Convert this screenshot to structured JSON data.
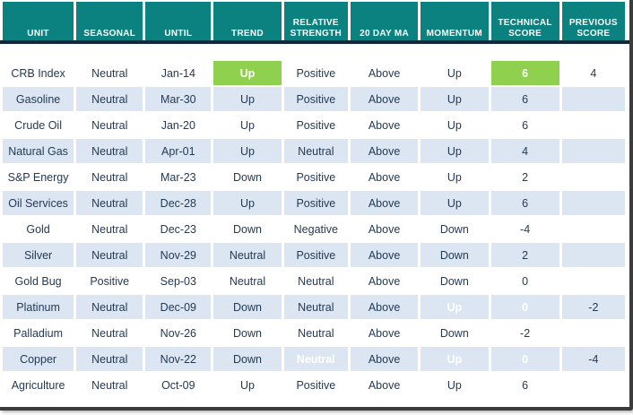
{
  "colors": {
    "header_bg": "#0B8180",
    "header_text": "#FFFFFF",
    "row_bg": "#FFFFFF",
    "row_alt_bg": "#DCE6F2",
    "cell_text": "#233A54",
    "highlight_bg": "#8FD04F",
    "highlight_text": "#FFFFFF",
    "header_underline": "#10273E",
    "frame": "#3C3C3C"
  },
  "chart_data": {
    "type": "table",
    "columns": [
      {
        "key": "unit",
        "label": "UNIT"
      },
      {
        "key": "seasonal",
        "label": "SEASONAL"
      },
      {
        "key": "until",
        "label": "UNTIL"
      },
      {
        "key": "trend",
        "label": "TREND"
      },
      {
        "key": "relative_strength",
        "label": "RELATIVE\nSTRENGTH"
      },
      {
        "key": "ma_20day",
        "label": "20 DAY MA"
      },
      {
        "key": "momentum",
        "label": "MOMENTUM"
      },
      {
        "key": "technical_score",
        "label": "TECHNICAL\nSCORE"
      },
      {
        "key": "previous_score",
        "label": "PREVIOUS\nSCORE"
      }
    ],
    "rows": [
      {
        "values": {
          "unit": "CRB Index",
          "seasonal": "Neutral",
          "until": "Jan-14",
          "trend": "Up",
          "relative_strength": "Positive",
          "ma_20day": "Above",
          "momentum": "Up",
          "technical_score": "6",
          "previous_score": "4"
        },
        "highlights": [
          "trend",
          "technical_score"
        ]
      },
      {
        "values": {
          "unit": "Gasoline",
          "seasonal": "Neutral",
          "until": "Mar-30",
          "trend": "Up",
          "relative_strength": "Positive",
          "ma_20day": "Above",
          "momentum": "Up",
          "technical_score": "6",
          "previous_score": ""
        },
        "highlights": []
      },
      {
        "values": {
          "unit": "Crude Oil",
          "seasonal": "Neutral",
          "until": "Jan-20",
          "trend": "Up",
          "relative_strength": "Positive",
          "ma_20day": "Above",
          "momentum": "Up",
          "technical_score": "6",
          "previous_score": ""
        },
        "highlights": []
      },
      {
        "values": {
          "unit": "Natural Gas",
          "seasonal": "Neutral",
          "until": "Apr-01",
          "trend": "Up",
          "relative_strength": "Neutral",
          "ma_20day": "Above",
          "momentum": "Up",
          "technical_score": "4",
          "previous_score": ""
        },
        "highlights": []
      },
      {
        "values": {
          "unit": "S&P Energy",
          "seasonal": "Neutral",
          "until": "Mar-23",
          "trend": "Down",
          "relative_strength": "Positive",
          "ma_20day": "Above",
          "momentum": "Up",
          "technical_score": "2",
          "previous_score": ""
        },
        "highlights": []
      },
      {
        "values": {
          "unit": "Oil Services",
          "seasonal": "Neutral",
          "until": "Dec-28",
          "trend": "Up",
          "relative_strength": "Positive",
          "ma_20day": "Above",
          "momentum": "Up",
          "technical_score": "6",
          "previous_score": ""
        },
        "highlights": []
      },
      {
        "values": {
          "unit": "Gold",
          "seasonal": "Neutral",
          "until": "Dec-23",
          "trend": "Down",
          "relative_strength": "Negative",
          "ma_20day": "Above",
          "momentum": "Down",
          "technical_score": "-4",
          "previous_score": ""
        },
        "highlights": []
      },
      {
        "values": {
          "unit": "Silver",
          "seasonal": "Neutral",
          "until": "Nov-29",
          "trend": "Neutral",
          "relative_strength": "Positive",
          "ma_20day": "Above",
          "momentum": "Down",
          "technical_score": "2",
          "previous_score": ""
        },
        "highlights": []
      },
      {
        "values": {
          "unit": "Gold Bug",
          "seasonal": "Positive",
          "until": "Sep-03",
          "trend": "Neutral",
          "relative_strength": "Neutral",
          "ma_20day": "Above",
          "momentum": "Down",
          "technical_score": "0",
          "previous_score": ""
        },
        "highlights": []
      },
      {
        "values": {
          "unit": "Platinum",
          "seasonal": "Neutral",
          "until": "Dec-09",
          "trend": "Down",
          "relative_strength": "Neutral",
          "ma_20day": "Above",
          "momentum": "Up",
          "technical_score": "0",
          "previous_score": "-2"
        },
        "highlights": [
          "momentum",
          "technical_score"
        ]
      },
      {
        "values": {
          "unit": "Palladium",
          "seasonal": "Neutral",
          "until": "Nov-26",
          "trend": "Down",
          "relative_strength": "Neutral",
          "ma_20day": "Above",
          "momentum": "Down",
          "technical_score": "-2",
          "previous_score": ""
        },
        "highlights": []
      },
      {
        "values": {
          "unit": "Copper",
          "seasonal": "Neutral",
          "until": "Nov-22",
          "trend": "Down",
          "relative_strength": "Neutral",
          "ma_20day": "Above",
          "momentum": "Up",
          "technical_score": "0",
          "previous_score": "-4"
        },
        "highlights": [
          "relative_strength",
          "momentum",
          "technical_score"
        ]
      },
      {
        "values": {
          "unit": "Agriculture",
          "seasonal": "Neutral",
          "until": "Oct-09",
          "trend": "Up",
          "relative_strength": "Positive",
          "ma_20day": "Above",
          "momentum": "Up",
          "technical_score": "6",
          "previous_score": ""
        },
        "highlights": []
      }
    ]
  }
}
